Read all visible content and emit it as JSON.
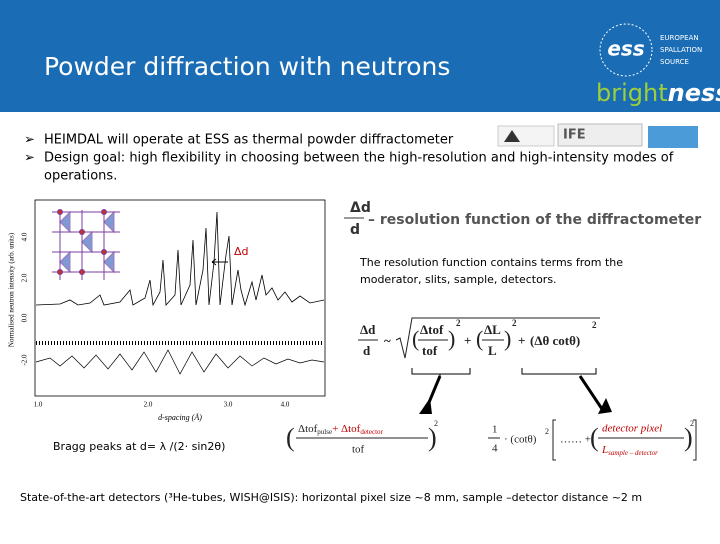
{
  "header": {
    "title": "Powder diffraction with neutrons",
    "logo": {
      "org": [
        "EUROPEAN",
        "SPALLATION",
        "SOURCE"
      ],
      "mark": "ess",
      "project": "bright",
      "project_suffix": "ness"
    }
  },
  "bullets": [
    "HEIMDAL will operate at ESS as thermal powder diffractometer",
    "Design goal: high flexibility in choosing between the high-resolution and high-intensity modes of",
    "operations."
  ],
  "partner_logos": [
    "IFE"
  ],
  "plot": {
    "y_label": "Normalised neutron intensity (arb. units)",
    "x_label": "d-spacing (Å)",
    "x_ticks": [
      "1.0",
      "2.0",
      "3.0",
      "4.0"
    ],
    "y_ticks": [
      "4.0",
      "2.0",
      "0.0",
      "-2.0"
    ],
    "annotation": "Δd"
  },
  "resolution": {
    "numerator": "Δd",
    "denominator": "d",
    "label": "– resolution function of the diffractometer",
    "note": [
      "The resolution function contains terms from the",
      "moderator, slits, sample, detectors."
    ]
  },
  "formula": {
    "lhs_num": "Δd",
    "lhs_den": "d",
    "approx": "~",
    "t1_num": "Δtof",
    "t1_den": "tof",
    "sq": "2",
    "plus": "+",
    "t2_num": "ΔL",
    "t2_den": "L",
    "t3": "(Δθ cotθ)"
  },
  "formula_detail": {
    "tof_num": "Δtof",
    "tof_pulse": "pulse",
    "tof_plus": "+ Δtof",
    "tof_detector": "detector",
    "tof_den": "tof",
    "quarter_num": "1",
    "quarter_den": "4",
    "cot": "· (cotθ)",
    "dots": "…… +",
    "pix_num": "detector pixel",
    "pix_den": "L",
    "pix_sub": "sample – detector"
  },
  "bragg": "Bragg peaks at d= λ /(2· sin2θ)",
  "footer": "State-of-the-art detectors (³He-tubes, WISH@ISIS): horizontal pixel size ~8 mm, sample –detector distance ~2 m"
}
